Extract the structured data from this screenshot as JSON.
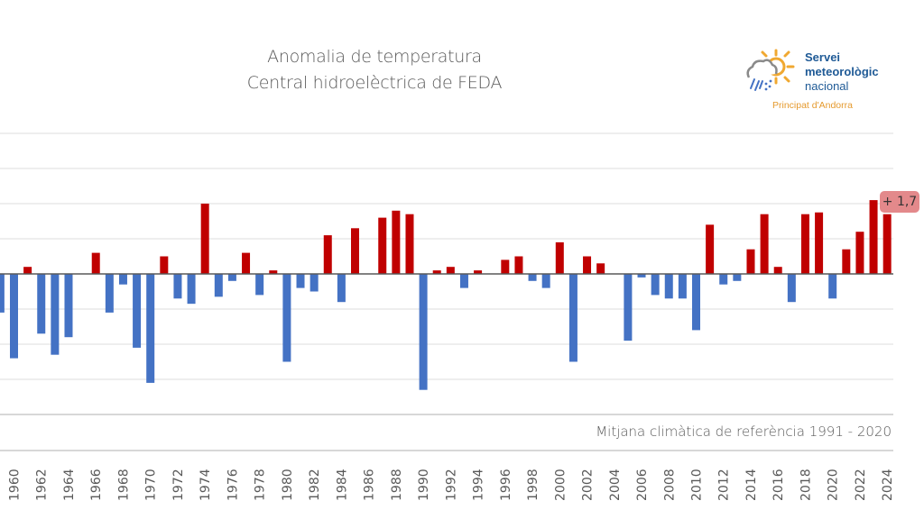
{
  "chart_data": {
    "type": "bar",
    "title": "Anomalia de temperatura",
    "subtitle": "Central hidroelèctrica de FEDA",
    "xlabel": "",
    "ylabel": "",
    "reference_note": "Mitjana climàtica de referència 1991 - 2020",
    "ylim": [
      -4,
      4
    ],
    "y_grid_step": 1,
    "grid": true,
    "tick_labels_every": 2,
    "positive_color": "#c00000",
    "negative_color": "#4472c4",
    "categories": [
      1959,
      1960,
      1961,
      1962,
      1963,
      1964,
      1965,
      1966,
      1967,
      1968,
      1969,
      1970,
      1971,
      1972,
      1973,
      1974,
      1975,
      1976,
      1977,
      1978,
      1979,
      1980,
      1981,
      1982,
      1983,
      1984,
      1985,
      1986,
      1987,
      1988,
      1989,
      1990,
      1991,
      1992,
      1993,
      1994,
      1995,
      1996,
      1997,
      1998,
      1999,
      2000,
      2001,
      2002,
      2003,
      2004,
      2005,
      2006,
      2007,
      2008,
      2009,
      2010,
      2011,
      2012,
      2013,
      2014,
      2015,
      2016,
      2017,
      2018,
      2019,
      2020,
      2021,
      2022,
      2023,
      2024
    ],
    "values": [
      -1.1,
      -2.4,
      0.2,
      -1.7,
      -2.3,
      -1.8,
      0.0,
      0.6,
      -1.1,
      -0.3,
      -2.1,
      -3.1,
      0.5,
      -0.7,
      -0.85,
      2.0,
      -0.65,
      -0.2,
      0.6,
      -0.6,
      0.1,
      -2.5,
      -0.4,
      -0.5,
      1.1,
      -0.8,
      1.3,
      0.0,
      1.6,
      1.8,
      1.7,
      -3.3,
      0.1,
      0.2,
      -0.4,
      0.1,
      0.0,
      0.4,
      0.5,
      -0.2,
      -0.4,
      0.9,
      -2.5,
      0.5,
      0.3,
      0.0,
      -1.9,
      -0.1,
      -0.6,
      -0.7,
      -0.7,
      -1.6,
      1.4,
      -0.3,
      -0.2,
      0.7,
      1.7,
      0.2,
      -0.8,
      1.7,
      1.75,
      -0.7,
      0.7,
      1.2,
      2.1,
      1.7
    ],
    "annotations": [
      {
        "category": 2024,
        "text": "+ 1,7"
      }
    ]
  },
  "logo": {
    "line1": "Servei",
    "line2": "meteorològic",
    "line3": "nacional",
    "subtitle": "Principat d'Andorra"
  }
}
